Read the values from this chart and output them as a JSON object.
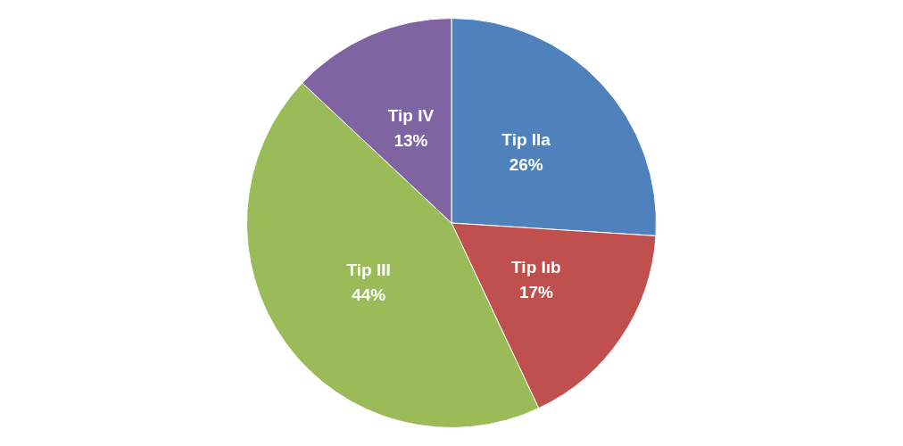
{
  "chart_data": {
    "type": "pie",
    "categories": [
      "Tip IIa",
      "Tip Iıb",
      "Tip III",
      "Tip IV"
    ],
    "values": [
      26,
      17,
      44,
      13
    ],
    "value_labels": [
      "26%",
      "17%",
      "44%",
      "13%"
    ],
    "colors": [
      "#4f81bd",
      "#c0504d",
      "#9bbb59",
      "#8064a2"
    ],
    "legend": false
  }
}
